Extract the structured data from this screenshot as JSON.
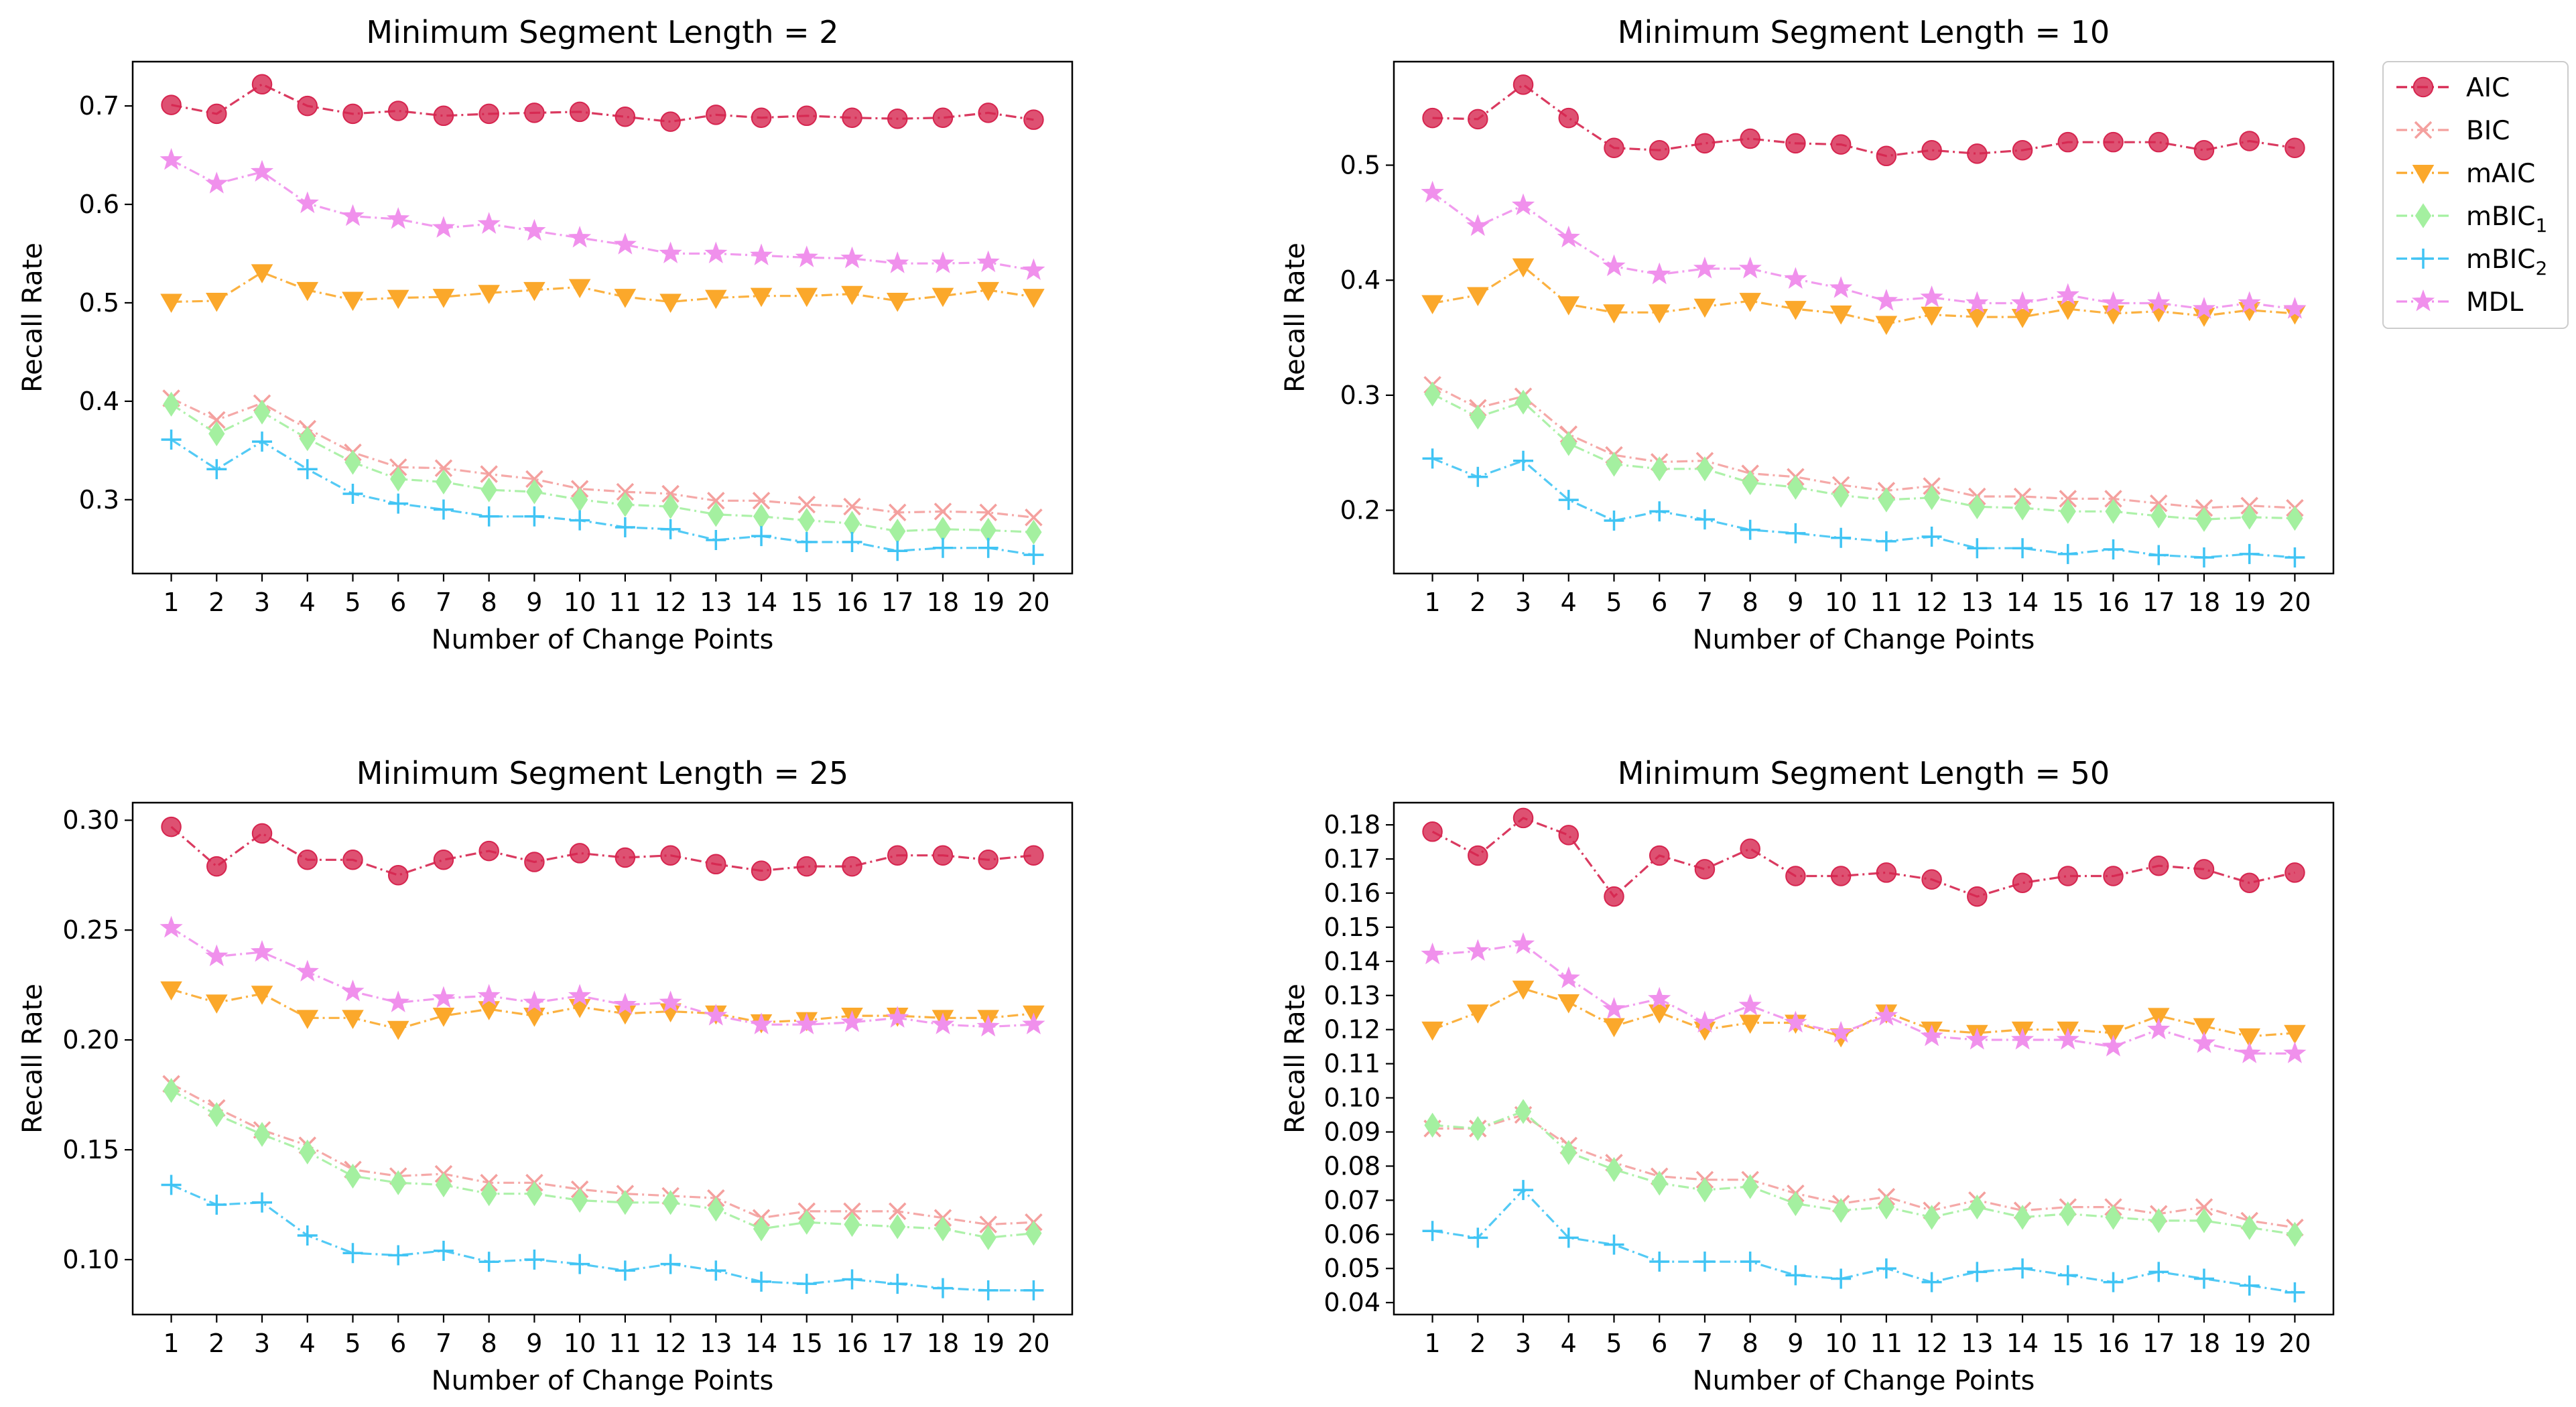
{
  "figure": {
    "charts_in_image": 4,
    "legend_position": "right of top-right panel"
  },
  "legend": [
    {
      "key": "AIC",
      "label": "AIC",
      "color": "#d6254f",
      "marker": "circle",
      "marker_name": "circle-marker-icon"
    },
    {
      "key": "BIC",
      "label": "BIC",
      "color": "#f4a09e",
      "marker": "x",
      "marker_name": "x-marker-icon"
    },
    {
      "key": "mAIC",
      "label": "mAIC",
      "color": "#fba82b",
      "marker": "triangle-down",
      "marker_name": "triangle-down-marker-icon"
    },
    {
      "key": "mBIC1",
      "label": "mBIC",
      "sub": "1",
      "color": "#a4f0a0",
      "marker": "diamond",
      "marker_name": "diamond-marker-icon"
    },
    {
      "key": "mBIC2",
      "label": "mBIC",
      "sub": "2",
      "color": "#40c4f4",
      "marker": "plus",
      "marker_name": "plus-marker-icon"
    },
    {
      "key": "MDL",
      "label": "MDL",
      "color": "#f090ec",
      "marker": "star",
      "marker_name": "star-marker-icon"
    }
  ],
  "chart_data": [
    {
      "type": "line",
      "title": "Minimum Segment Length = 2",
      "xlabel": "Number of Change Points",
      "ylabel": "Recall Rate",
      "x": [
        1,
        2,
        3,
        4,
        5,
        6,
        7,
        8,
        9,
        10,
        11,
        12,
        13,
        14,
        15,
        16,
        17,
        18,
        19,
        20
      ],
      "ylim": [
        0.225,
        0.745
      ],
      "yticks": [
        0.3,
        0.4,
        0.5,
        0.6,
        0.7
      ],
      "ytick_labels": [
        "0.3",
        "0.4",
        "0.5",
        "0.6",
        "0.7"
      ],
      "series": [
        {
          "name": "AIC",
          "values": [
            0.701,
            0.692,
            0.722,
            0.7,
            0.692,
            0.695,
            0.69,
            0.692,
            0.693,
            0.694,
            0.689,
            0.684,
            0.691,
            0.688,
            0.69,
            0.688,
            0.687,
            0.688,
            0.693,
            0.686
          ]
        },
        {
          "name": "BIC",
          "values": [
            0.403,
            0.381,
            0.398,
            0.372,
            0.348,
            0.333,
            0.332,
            0.326,
            0.321,
            0.311,
            0.308,
            0.306,
            0.299,
            0.299,
            0.295,
            0.293,
            0.287,
            0.288,
            0.287,
            0.282
          ]
        },
        {
          "name": "mAIC",
          "values": [
            0.501,
            0.502,
            0.531,
            0.513,
            0.503,
            0.505,
            0.506,
            0.51,
            0.513,
            0.516,
            0.506,
            0.501,
            0.505,
            0.507,
            0.507,
            0.509,
            0.502,
            0.507,
            0.513,
            0.506
          ]
        },
        {
          "name": "mBIC1",
          "values": [
            0.397,
            0.367,
            0.389,
            0.362,
            0.338,
            0.321,
            0.318,
            0.31,
            0.308,
            0.3,
            0.295,
            0.293,
            0.285,
            0.283,
            0.279,
            0.276,
            0.268,
            0.27,
            0.269,
            0.267
          ]
        },
        {
          "name": "mBIC2",
          "values": [
            0.361,
            0.331,
            0.359,
            0.331,
            0.306,
            0.296,
            0.29,
            0.283,
            0.283,
            0.279,
            0.272,
            0.27,
            0.259,
            0.263,
            0.257,
            0.257,
            0.248,
            0.251,
            0.251,
            0.244
          ]
        },
        {
          "name": "MDL",
          "values": [
            0.645,
            0.621,
            0.633,
            0.601,
            0.588,
            0.585,
            0.576,
            0.58,
            0.573,
            0.566,
            0.559,
            0.55,
            0.55,
            0.548,
            0.546,
            0.545,
            0.54,
            0.54,
            0.541,
            0.533
          ]
        }
      ]
    },
    {
      "type": "line",
      "title": "Minimum Segment Length = 10",
      "xlabel": "Number of Change Points",
      "ylabel": "Recall Rate",
      "x": [
        1,
        2,
        3,
        4,
        5,
        6,
        7,
        8,
        9,
        10,
        11,
        12,
        13,
        14,
        15,
        16,
        17,
        18,
        19,
        20
      ],
      "ylim": [
        0.145,
        0.59
      ],
      "yticks": [
        0.2,
        0.3,
        0.4,
        0.5
      ],
      "ytick_labels": [
        "0.2",
        "0.3",
        "0.4",
        "0.5"
      ],
      "series": [
        {
          "name": "AIC",
          "values": [
            0.541,
            0.54,
            0.57,
            0.541,
            0.515,
            0.513,
            0.519,
            0.523,
            0.519,
            0.518,
            0.508,
            0.513,
            0.51,
            0.513,
            0.52,
            0.52,
            0.52,
            0.513,
            0.521,
            0.515
          ]
        },
        {
          "name": "BIC",
          "values": [
            0.309,
            0.289,
            0.299,
            0.266,
            0.248,
            0.242,
            0.243,
            0.232,
            0.229,
            0.222,
            0.217,
            0.221,
            0.212,
            0.212,
            0.21,
            0.21,
            0.206,
            0.202,
            0.204,
            0.202
          ]
        },
        {
          "name": "mAIC",
          "values": [
            0.38,
            0.387,
            0.412,
            0.379,
            0.372,
            0.372,
            0.377,
            0.382,
            0.375,
            0.371,
            0.362,
            0.37,
            0.368,
            0.368,
            0.375,
            0.371,
            0.373,
            0.369,
            0.374,
            0.371
          ]
        },
        {
          "name": "mBIC1",
          "values": [
            0.301,
            0.281,
            0.294,
            0.258,
            0.24,
            0.236,
            0.236,
            0.224,
            0.22,
            0.213,
            0.209,
            0.211,
            0.203,
            0.202,
            0.199,
            0.199,
            0.195,
            0.192,
            0.194,
            0.193
          ]
        },
        {
          "name": "mBIC2",
          "values": [
            0.245,
            0.229,
            0.243,
            0.209,
            0.191,
            0.199,
            0.192,
            0.183,
            0.18,
            0.176,
            0.173,
            0.177,
            0.167,
            0.167,
            0.162,
            0.166,
            0.161,
            0.159,
            0.162,
            0.159
          ]
        },
        {
          "name": "MDL",
          "values": [
            0.476,
            0.447,
            0.465,
            0.437,
            0.412,
            0.405,
            0.41,
            0.41,
            0.401,
            0.393,
            0.382,
            0.385,
            0.38,
            0.38,
            0.387,
            0.38,
            0.38,
            0.375,
            0.38,
            0.375
          ]
        }
      ]
    },
    {
      "type": "line",
      "title": "Minimum Segment Length = 25",
      "xlabel": "Number of Change Points",
      "ylabel": "Recall Rate",
      "x": [
        1,
        2,
        3,
        4,
        5,
        6,
        7,
        8,
        9,
        10,
        11,
        12,
        13,
        14,
        15,
        16,
        17,
        18,
        19,
        20
      ],
      "ylim": [
        0.075,
        0.308
      ],
      "yticks": [
        0.1,
        0.15,
        0.2,
        0.25,
        0.3
      ],
      "ytick_labels": [
        "0.10",
        "0.15",
        "0.20",
        "0.25",
        "0.30"
      ],
      "series": [
        {
          "name": "AIC",
          "values": [
            0.297,
            0.279,
            0.294,
            0.282,
            0.282,
            0.275,
            0.282,
            0.286,
            0.281,
            0.285,
            0.283,
            0.284,
            0.28,
            0.277,
            0.279,
            0.279,
            0.284,
            0.284,
            0.282,
            0.284
          ]
        },
        {
          "name": "BIC",
          "values": [
            0.18,
            0.169,
            0.159,
            0.152,
            0.141,
            0.138,
            0.139,
            0.135,
            0.135,
            0.132,
            0.13,
            0.129,
            0.128,
            0.119,
            0.122,
            0.122,
            0.122,
            0.119,
            0.116,
            0.117
          ]
        },
        {
          "name": "mAIC",
          "values": [
            0.223,
            0.217,
            0.221,
            0.21,
            0.21,
            0.205,
            0.211,
            0.214,
            0.211,
            0.215,
            0.212,
            0.213,
            0.212,
            0.208,
            0.209,
            0.211,
            0.211,
            0.21,
            0.21,
            0.212
          ]
        },
        {
          "name": "mBIC1",
          "values": [
            0.177,
            0.166,
            0.157,
            0.149,
            0.138,
            0.135,
            0.134,
            0.13,
            0.13,
            0.127,
            0.126,
            0.126,
            0.123,
            0.114,
            0.117,
            0.116,
            0.115,
            0.114,
            0.11,
            0.112
          ]
        },
        {
          "name": "mBIC2",
          "values": [
            0.134,
            0.125,
            0.126,
            0.111,
            0.103,
            0.102,
            0.104,
            0.099,
            0.1,
            0.098,
            0.095,
            0.098,
            0.095,
            0.09,
            0.089,
            0.091,
            0.089,
            0.087,
            0.086,
            0.086
          ]
        },
        {
          "name": "MDL",
          "values": [
            0.251,
            0.238,
            0.24,
            0.231,
            0.222,
            0.217,
            0.219,
            0.22,
            0.217,
            0.22,
            0.216,
            0.217,
            0.211,
            0.207,
            0.207,
            0.208,
            0.21,
            0.207,
            0.206,
            0.207
          ]
        }
      ]
    },
    {
      "type": "line",
      "title": "Minimum Segment Length = 50",
      "xlabel": "Number of Change Points",
      "ylabel": "Recall Rate",
      "x": [
        1,
        2,
        3,
        4,
        5,
        6,
        7,
        8,
        9,
        10,
        11,
        12,
        13,
        14,
        15,
        16,
        17,
        18,
        19,
        20
      ],
      "ylim": [
        0.0365,
        0.1865
      ],
      "yticks": [
        0.04,
        0.05,
        0.06,
        0.07,
        0.08,
        0.09,
        0.1,
        0.11,
        0.12,
        0.13,
        0.14,
        0.15,
        0.16,
        0.17,
        0.18
      ],
      "ytick_labels": [
        "0.04",
        "0.05",
        "0.06",
        "0.07",
        "0.08",
        "0.09",
        "0.10",
        "0.11",
        "0.12",
        "0.13",
        "0.14",
        "0.15",
        "0.16",
        "0.17",
        "0.18"
      ],
      "series": [
        {
          "name": "AIC",
          "values": [
            0.178,
            0.171,
            0.182,
            0.177,
            0.159,
            0.171,
            0.167,
            0.173,
            0.165,
            0.165,
            0.166,
            0.164,
            0.159,
            0.163,
            0.165,
            0.165,
            0.168,
            0.167,
            0.163,
            0.166
          ]
        },
        {
          "name": "BIC",
          "values": [
            0.091,
            0.091,
            0.095,
            0.086,
            0.081,
            0.077,
            0.076,
            0.076,
            0.072,
            0.069,
            0.071,
            0.067,
            0.07,
            0.067,
            0.068,
            0.068,
            0.066,
            0.068,
            0.064,
            0.062
          ]
        },
        {
          "name": "mAIC",
          "values": [
            0.12,
            0.125,
            0.132,
            0.128,
            0.121,
            0.125,
            0.12,
            0.122,
            0.122,
            0.118,
            0.125,
            0.12,
            0.119,
            0.12,
            0.12,
            0.119,
            0.124,
            0.121,
            0.118,
            0.119
          ]
        },
        {
          "name": "mBIC1",
          "values": [
            0.092,
            0.091,
            0.096,
            0.084,
            0.079,
            0.075,
            0.073,
            0.074,
            0.069,
            0.067,
            0.068,
            0.065,
            0.068,
            0.065,
            0.066,
            0.065,
            0.064,
            0.064,
            0.062,
            0.06
          ]
        },
        {
          "name": "mBIC2",
          "values": [
            0.061,
            0.059,
            0.073,
            0.059,
            0.057,
            0.052,
            0.052,
            0.052,
            0.048,
            0.047,
            0.05,
            0.046,
            0.049,
            0.05,
            0.048,
            0.046,
            0.049,
            0.047,
            0.045,
            0.043
          ]
        },
        {
          "name": "MDL",
          "values": [
            0.142,
            0.143,
            0.145,
            0.135,
            0.126,
            0.129,
            0.122,
            0.127,
            0.122,
            0.119,
            0.124,
            0.118,
            0.117,
            0.117,
            0.117,
            0.115,
            0.12,
            0.116,
            0.113,
            0.113
          ]
        }
      ]
    }
  ]
}
